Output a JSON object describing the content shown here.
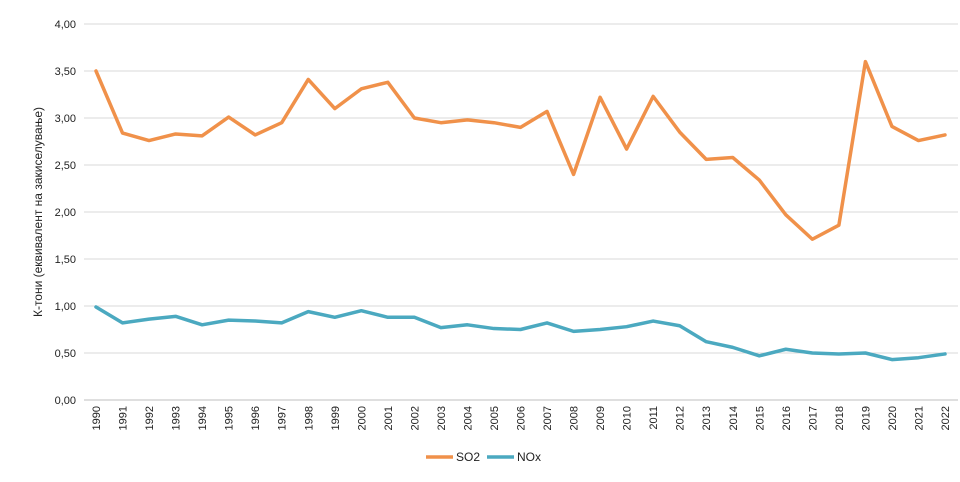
{
  "chart_data": {
    "type": "line",
    "title": "",
    "xlabel": "",
    "ylabel": "К-тони (еквивалент на закиселување)",
    "ylim": [
      0,
      4
    ],
    "yticks": [
      "0,00",
      "0,50",
      "1,00",
      "1,50",
      "2,00",
      "2,50",
      "3,00",
      "3,50",
      "4,00"
    ],
    "grid": true,
    "legend": "bottom-center",
    "x": [
      "1990",
      "1991",
      "1992",
      "1993",
      "1994",
      "1995",
      "1996",
      "1997",
      "1998",
      "1999",
      "2000",
      "2001",
      "2002",
      "2003",
      "2004",
      "2005",
      "2006",
      "2007",
      "2008",
      "2009",
      "2010",
      "2011",
      "2012",
      "2013",
      "2014",
      "2015",
      "2016",
      "2017",
      "2018",
      "2019",
      "2020",
      "2021",
      "2022"
    ],
    "series": [
      {
        "name": "SO2",
        "color": "#F0914A",
        "values": [
          3.5,
          2.84,
          2.76,
          2.83,
          2.81,
          3.01,
          2.82,
          2.95,
          3.41,
          3.1,
          3.31,
          3.38,
          3.0,
          2.95,
          2.98,
          2.95,
          2.9,
          3.07,
          2.4,
          3.22,
          2.67,
          3.23,
          2.85,
          2.56,
          2.58,
          2.34,
          1.97,
          1.71,
          1.86,
          3.6,
          2.91,
          2.76,
          2.82
        ]
      },
      {
        "name": "NOx",
        "color": "#4BA9C0",
        "values": [
          0.99,
          0.82,
          0.86,
          0.89,
          0.8,
          0.85,
          0.84,
          0.82,
          0.94,
          0.88,
          0.95,
          0.88,
          0.88,
          0.77,
          0.8,
          0.76,
          0.75,
          0.82,
          0.73,
          0.75,
          0.78,
          0.84,
          0.79,
          0.62,
          0.56,
          0.47,
          0.54,
          0.5,
          0.49,
          0.5,
          0.43,
          0.45,
          0.49
        ]
      }
    ]
  }
}
